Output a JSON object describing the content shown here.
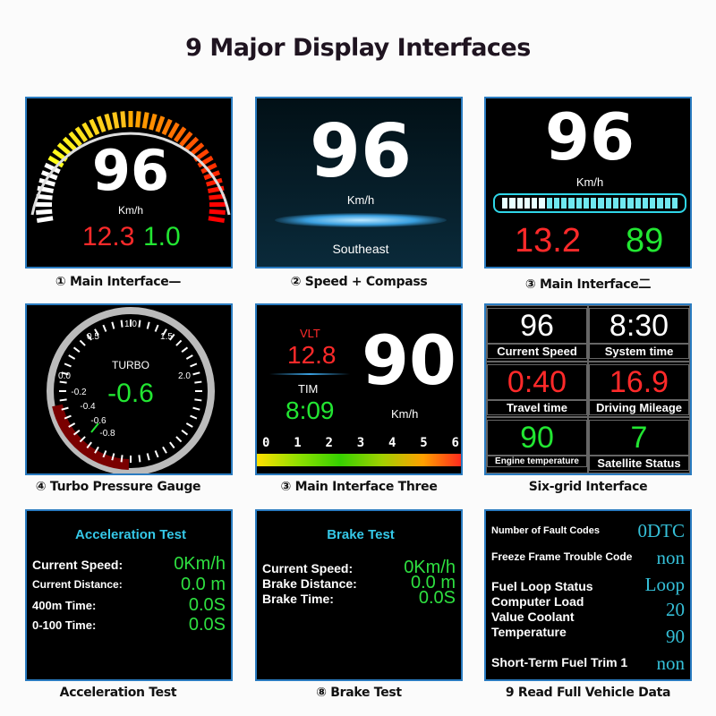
{
  "title": "9 Major Display Interfaces",
  "panels": {
    "p1": {
      "caption": "① Main Interface—",
      "speed": "96",
      "unit": "Km/h",
      "left": "12.3",
      "right": "1.0"
    },
    "p2": {
      "caption": "② Speed + Compass",
      "speed": "96",
      "unit": "Km/h",
      "direction": "Southeast"
    },
    "p3": {
      "caption": "③ Main Interface二",
      "speed": "96",
      "unit": "Km/h",
      "left": "13.2",
      "right": "89"
    },
    "p4": {
      "caption": "④ Turbo Pressure Gauge",
      "label": "TURBO",
      "value": "-0.6",
      "ticks": [
        "-0.8",
        "-0.6",
        "-0.4",
        "-0.2",
        "0.0",
        "0.5",
        "1.0",
        "1.5",
        "2.0"
      ]
    },
    "p5": {
      "caption": "③ Main Interface Three",
      "vlt_label": "VLT",
      "vlt": "12.8",
      "tim_label": "TIM",
      "tim": "8:09",
      "speed": "90",
      "unit": "Km/h",
      "scale": [
        "0",
        "1",
        "2",
        "3",
        "4",
        "5",
        "6"
      ]
    },
    "p6": {
      "caption": "Six-grid Interface",
      "cells": [
        {
          "value": "96",
          "label": "Current Speed",
          "color": "#ffffff"
        },
        {
          "value": "8:30",
          "label": "System time",
          "color": "#ffffff"
        },
        {
          "value": "0:40",
          "label": "Travel time",
          "color": "#ff2a2a"
        },
        {
          "value": "16.9",
          "label": "Driving Mileage",
          "color": "#ff2a2a"
        },
        {
          "value": "90",
          "label": "Engine temperature",
          "color": "#22e632"
        },
        {
          "value": "7",
          "label": "Satellite Status",
          "color": "#22e632"
        }
      ]
    },
    "p7": {
      "caption": "Acceleration Test",
      "heading": "Acceleration Test",
      "rows": [
        {
          "label": "Current Speed:",
          "value": "0Km/h"
        },
        {
          "label": "Current Distance:",
          "value": "0.0 m"
        },
        {
          "label": "400m Time:",
          "value": "0.0S"
        },
        {
          "label": "0-100 Time:",
          "value": "0.0S"
        }
      ]
    },
    "p8": {
      "caption": "⑧ Brake Test",
      "heading": "Brake Test",
      "rows": [
        {
          "label": "Current Speed:",
          "value": "0Km/h"
        },
        {
          "label": "Brake Distance:",
          "value": "0.0 m"
        },
        {
          "label": "Brake Time:",
          "value": "0.0S"
        }
      ]
    },
    "p9": {
      "caption": "9 Read Full Vehicle Data",
      "rows": [
        {
          "label": "Number of Fault Codes",
          "value": "0DTC"
        },
        {
          "label": "Freeze Frame Trouble Code",
          "value": "non"
        },
        {
          "label": "Fuel Loop Status",
          "value": "Loop"
        },
        {
          "label": "Computer Load",
          "value": "20"
        },
        {
          "label": "Value Coolant",
          "value": ""
        },
        {
          "label": "Temperature",
          "value": "90"
        },
        {
          "label": "Short-Term Fuel Trim 1",
          "value": "non"
        }
      ]
    }
  },
  "colors": {
    "border": "#2a7bc0",
    "red": "#ff2a2a",
    "green": "#22e632",
    "cyan": "#35c8e8"
  }
}
